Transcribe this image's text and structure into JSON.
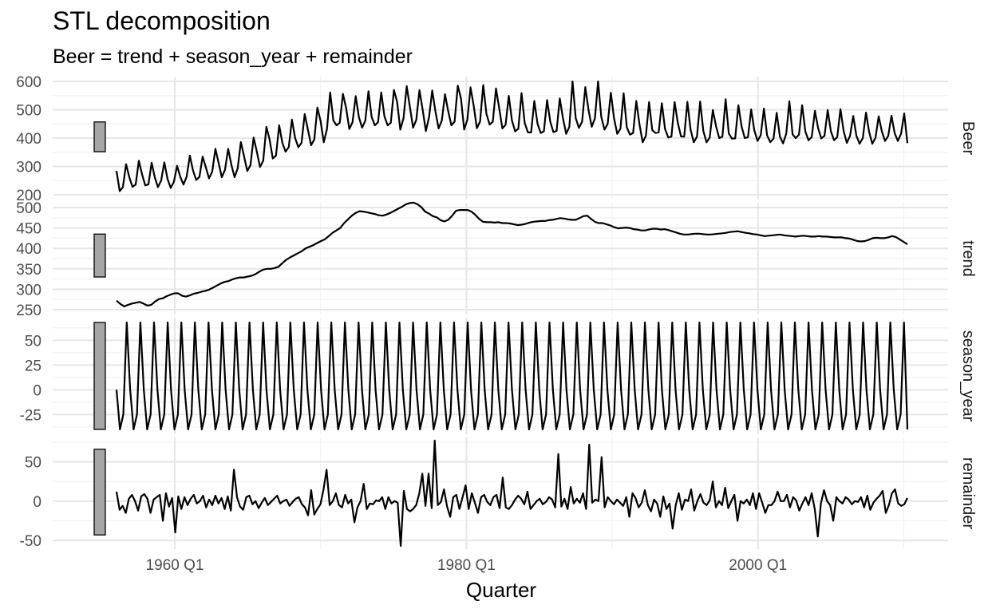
{
  "chart_data": {
    "type": "line",
    "title": "STL decomposition",
    "subtitle": "Beer = trend + season_year + remainder",
    "xlabel": "Quarter",
    "x_range": [
      1956.0,
      2010.25
    ],
    "x_tick_labels": [
      {
        "x": 1960,
        "label": "1960 Q1"
      },
      {
        "x": 1980,
        "label": "1980 Q1"
      },
      {
        "x": 2000,
        "label": "2000 Q1"
      }
    ],
    "x_minor_ticks": [
      1970,
      1990,
      2010
    ],
    "grid": true,
    "panels": [
      {
        "name": "Beer",
        "strip_label": "Beer",
        "ylim": [
          200,
          600
        ],
        "yticks": [
          200,
          300,
          400,
          500,
          600
        ],
        "scale_bar_range": [
          352,
          457
        ],
        "values": [
          284,
          213,
          227,
          308,
          262,
          228,
          236,
          320,
          272,
          233,
          237,
          313,
          261,
          227,
          250,
          314,
          256,
          224,
          246,
          302,
          263,
          236,
          264,
          338,
          285,
          252,
          263,
          335,
          297,
          258,
          281,
          362,
          313,
          262,
          288,
          362,
          306,
          262,
          293,
          386,
          336,
          284,
          304,
          402,
          352,
          298,
          320,
          440,
          395,
          328,
          338,
          445,
          383,
          352,
          368,
          465,
          400,
          368,
          383,
          485,
          430,
          375,
          395,
          508,
          460,
          385,
          432,
          561,
          462,
          445,
          454,
          556,
          506,
          432,
          456,
          548,
          474,
          437,
          461,
          565,
          474,
          445,
          456,
          561,
          477,
          445,
          454,
          570,
          528,
          430,
          470,
          583,
          510,
          437,
          464,
          569,
          500,
          425,
          474,
          568,
          494,
          434,
          462,
          555,
          495,
          445,
          458,
          585,
          540,
          430,
          465,
          579,
          515,
          435,
          458,
          587,
          486,
          448,
          458,
          575,
          505,
          434,
          447,
          549,
          462,
          424,
          433,
          559,
          453,
          420,
          420,
          531,
          451,
          418,
          424,
          534,
          458,
          421,
          425,
          540,
          470,
          415,
          440,
          600,
          470,
          436,
          458,
          580,
          500,
          440,
          469,
          600,
          475,
          430,
          450,
          560,
          470,
          415,
          433,
          558,
          438,
          412,
          418,
          531,
          448,
          385,
          408,
          527,
          428,
          418,
          420,
          523,
          432,
          402,
          405,
          527,
          454,
          406,
          405,
          528,
          430,
          385,
          405,
          529,
          425,
          385,
          402,
          499,
          442,
          400,
          405,
          537,
          416,
          398,
          399,
          516,
          441,
          400,
          403,
          501,
          427,
          390,
          410,
          504,
          409,
          386,
          398,
          489,
          406,
          381,
          416,
          530,
          413,
          400,
          412,
          516,
          423,
          392,
          404,
          496,
          435,
          399,
          408,
          499,
          424,
          392,
          404,
          502,
          425,
          383,
          408,
          478,
          408,
          380,
          400,
          490,
          422,
          380,
          401,
          477,
          423,
          390,
          408,
          479,
          418,
          390,
          415,
          487,
          382
        ]
      },
      {
        "name": "trend",
        "strip_label": "trend",
        "ylim": [
          250,
          500
        ],
        "yticks": [
          250,
          300,
          350,
          400,
          450,
          500
        ],
        "scale_bar_range": [
          330,
          435
        ],
        "values": [
          272,
          264,
          258,
          262,
          265,
          267,
          269,
          265,
          260,
          262,
          270,
          276,
          278,
          283,
          287,
          290,
          290,
          284,
          282,
          285,
          289,
          291,
          294,
          296,
          299,
          304,
          309,
          314,
          318,
          320,
          324,
          327,
          329,
          329,
          331,
          333,
          337,
          343,
          348,
          350,
          350,
          352,
          355,
          364,
          372,
          378,
          383,
          388,
          393,
          400,
          404,
          408,
          413,
          418,
          422,
          430,
          438,
          444,
          450,
          462,
          471,
          480,
          487,
          491,
          490,
          488,
          486,
          484,
          481,
          480,
          483,
          487,
          492,
          497,
          502,
          508,
          511,
          512,
          508,
          501,
          490,
          485,
          479,
          476,
          469,
          466,
          470,
          480,
          492,
          494,
          494,
          494,
          490,
          482,
          472,
          465,
          464,
          464,
          463,
          464,
          462,
          462,
          461,
          459,
          457,
          458,
          460,
          463,
          465,
          466,
          467,
          467,
          469,
          470,
          472,
          474,
          473,
          471,
          470,
          470,
          474,
          479,
          480,
          472,
          465,
          462,
          462,
          459,
          456,
          452,
          449,
          450,
          451,
          450,
          447,
          446,
          444,
          444,
          446,
          448,
          448,
          446,
          447,
          445,
          442,
          439,
          436,
          434,
          434,
          435,
          436,
          436,
          435,
          434,
          434,
          435,
          436,
          437,
          438,
          440,
          441,
          442,
          440,
          438,
          437,
          435,
          434,
          432,
          430,
          431,
          432,
          433,
          434,
          432,
          431,
          430,
          429,
          430,
          431,
          430,
          429,
          429,
          430,
          429,
          429,
          428,
          427,
          427,
          427,
          425,
          424,
          421,
          418,
          417,
          418,
          421,
          425,
          426,
          425,
          425,
          427,
          430,
          428,
          422,
          416,
          410
        ]
      },
      {
        "name": "season_year",
        "strip_label": "season_year",
        "ylim": [
          -40,
          68
        ],
        "yticks": [
          -25,
          0,
          25,
          50
        ],
        "scale_bar_range": [
          -40,
          68
        ],
        "values": [
          0,
          -40,
          -25,
          68,
          0,
          -40,
          -25,
          68,
          0,
          -40,
          -25,
          68,
          0,
          -40,
          -25,
          68,
          0,
          -40,
          -25,
          68,
          0,
          -40,
          -25,
          68,
          0,
          -40,
          -25,
          68,
          0,
          -40,
          -25,
          68,
          0,
          -40,
          -25,
          68,
          0,
          -40,
          -25,
          68,
          0,
          -40,
          -25,
          68,
          0,
          -40,
          -25,
          68,
          0,
          -40,
          -25,
          68,
          0,
          -40,
          -25,
          68,
          0,
          -40,
          -25,
          68,
          0,
          -40,
          -25,
          68,
          0,
          -40,
          -25,
          68,
          0,
          -40,
          -25,
          68,
          0,
          -40,
          -25,
          68,
          0,
          -40,
          -25,
          68,
          0,
          -40,
          -25,
          68,
          0,
          -40,
          -25,
          68,
          0,
          -40,
          -25,
          68,
          0,
          -40,
          -25,
          68,
          0,
          -40,
          -25,
          68,
          0,
          -40,
          -25,
          68,
          0,
          -40,
          -25,
          68,
          0,
          -40,
          -25,
          68,
          0,
          -40,
          -25,
          68,
          0,
          -40,
          -25,
          68,
          0,
          -40,
          -25,
          68,
          0,
          -40,
          -25,
          68,
          0,
          -40,
          -25,
          68,
          0,
          -40,
          -25,
          68,
          0,
          -40,
          -25,
          68,
          0,
          -40,
          -25,
          68,
          0,
          -40,
          -25,
          68,
          0,
          -40,
          -25,
          68,
          0,
          -40,
          -25,
          68,
          0,
          -40,
          -25,
          68,
          0,
          -40,
          -25,
          68,
          0,
          -40,
          -25,
          68,
          0,
          -40,
          -25,
          68,
          0,
          -40,
          -25,
          68,
          0,
          -40,
          -25,
          68,
          0,
          -40,
          -25,
          68,
          0,
          -40,
          -25,
          68,
          0,
          -40,
          -25,
          68,
          0,
          -40,
          -25,
          68,
          0,
          -40,
          -25,
          68,
          0,
          -40,
          -25,
          68,
          0,
          -40,
          -25,
          68,
          0,
          -40,
          -25,
          68,
          0,
          -40,
          -25,
          68,
          0,
          -40,
          -25,
          68,
          0,
          -40,
          -25,
          68,
          0,
          -40,
          -25,
          68,
          0,
          -40,
          -25,
          68,
          -40
        ]
      },
      {
        "name": "remainder",
        "strip_label": "remainder",
        "ylim": [
          -55,
          75
        ],
        "yticks": [
          -50,
          0,
          50
        ],
        "scale_bar_range": [
          -43,
          66
        ],
        "values": [
          12,
          -11,
          -6,
          -15,
          3,
          8,
          0,
          -12,
          6,
          9,
          3,
          -15,
          2,
          5,
          8,
          -25,
          10,
          -7,
          4,
          -40,
          6,
          -10,
          5,
          -5,
          3,
          8,
          -3,
          0,
          7,
          -8,
          2,
          -5,
          7,
          -3,
          4,
          -10,
          6,
          -12,
          40,
          5,
          -7,
          -11,
          5,
          7,
          -4,
          0,
          -9,
          -2,
          4,
          -5,
          -1,
          3,
          7,
          -3,
          0,
          2,
          -6,
          -1,
          3,
          5,
          -4,
          -8,
          -18,
          14,
          -17,
          -10,
          -4,
          15,
          40,
          -5,
          0,
          10,
          -5,
          -8,
          8,
          -3,
          2,
          -27,
          -8,
          0,
          22,
          -10,
          -3,
          -4,
          1,
          0,
          5,
          -10,
          5,
          -3,
          0,
          -2,
          -57,
          13,
          -10,
          -13,
          -10,
          -5,
          10,
          35,
          -6,
          35,
          -9,
          77,
          -5,
          -1,
          15,
          -7,
          -20,
          5,
          8,
          -10,
          5,
          20,
          -10,
          10,
          -2,
          -15,
          5,
          8,
          -1,
          -5,
          5,
          8,
          -9,
          30,
          -8,
          -10,
          -5,
          2,
          7,
          3,
          -4,
          12,
          -10,
          -5,
          0,
          3,
          -4,
          -1,
          5,
          2,
          -8,
          60,
          -7,
          3,
          -10,
          18,
          -3,
          3,
          -2,
          10,
          -10,
          72,
          -2,
          2,
          0,
          56,
          -8,
          5,
          0,
          -4,
          2,
          -2,
          -6,
          5,
          -20,
          10,
          4,
          -8,
          -2,
          14,
          -5,
          -13,
          2,
          -3,
          -20,
          6,
          -10,
          -3,
          -35,
          -5,
          10,
          -11,
          2,
          0,
          15,
          -12,
          0,
          9,
          -2,
          -5,
          1,
          25,
          -8,
          0,
          -5,
          17,
          -9,
          0,
          8,
          -25,
          0,
          -3,
          2,
          -5,
          10,
          -10,
          10,
          -2,
          -15,
          -5,
          -5,
          0,
          12,
          0,
          0,
          8,
          -8,
          5,
          1,
          -12,
          -3,
          5,
          -5,
          10,
          -10,
          -45,
          -3,
          14,
          0,
          -5,
          -25,
          5,
          0,
          -3,
          5,
          2,
          -4,
          0,
          -1,
          5,
          -8,
          7,
          -11,
          -2,
          3,
          7,
          13,
          -15,
          -5,
          10,
          15,
          -3,
          -6,
          -4,
          4
        ]
      }
    ]
  }
}
